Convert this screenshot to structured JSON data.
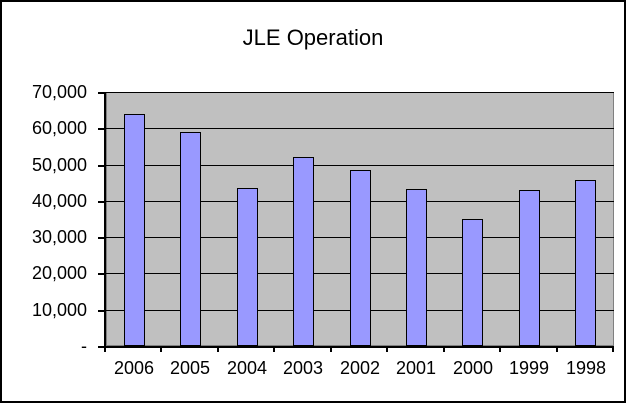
{
  "window": {
    "background": "#FFFFFF",
    "border_color": "#000000"
  },
  "chart_data": {
    "type": "bar",
    "title": "JLE Operation",
    "categories": [
      "2006",
      "2005",
      "2004",
      "2003",
      "2002",
      "2001",
      "2000",
      "1999",
      "1998"
    ],
    "values": [
      63800,
      58900,
      43500,
      52200,
      48500,
      43400,
      34900,
      43000,
      45800
    ],
    "xlabel": "",
    "ylabel": "",
    "ylim": [
      0,
      70000
    ],
    "y_tick_interval": 10000,
    "y_tick_labels": [
      "-",
      "10,000",
      "20,000",
      "30,000",
      "40,000",
      "50,000",
      "60,000",
      "70,000"
    ],
    "grid": true,
    "legend": "none",
    "bar_color": "#9999FF",
    "bar_border_color": "#000000",
    "plot_bg_color": "#C0C0C0",
    "plot_border_color": "#808080",
    "gridline_color": "#000000",
    "axis_color": "#000000",
    "text_color": "#000000"
  }
}
